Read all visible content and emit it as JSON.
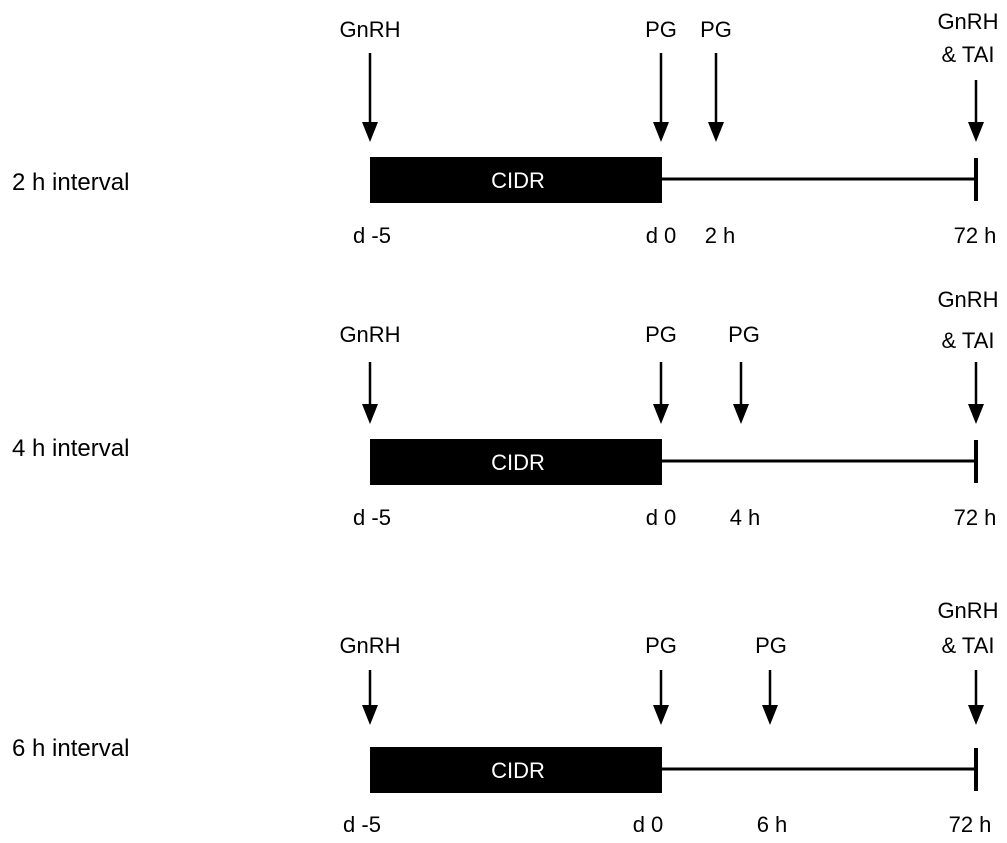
{
  "colors": {
    "ink": "#000000",
    "paper": "#ffffff"
  },
  "protocols": [
    {
      "label": "2 h interval",
      "events": {
        "gnrh": "GnRH",
        "pg1": "PG",
        "pg2": "PG",
        "final_line1": "GnRH",
        "final_line2": "& TAI"
      },
      "device": "CIDR",
      "ticks": {
        "start": "d -5",
        "pg1": "d 0",
        "pg2": "2 h",
        "end": "72 h"
      },
      "pg2_hours": 2
    },
    {
      "label": "4 h interval",
      "events": {
        "gnrh": "GnRH",
        "pg1": "PG",
        "pg2": "PG",
        "final_line1": "GnRH",
        "final_line2": "& TAI"
      },
      "device": "CIDR",
      "ticks": {
        "start": "d -5",
        "pg1": "d 0",
        "pg2": "4 h",
        "end": "72 h"
      },
      "pg2_hours": 4
    },
    {
      "label": "6 h interval",
      "events": {
        "gnrh": "GnRH",
        "pg1": "PG",
        "pg2": "PG",
        "final_line1": "GnRH",
        "final_line2": "& TAI"
      },
      "device": "CIDR",
      "ticks": {
        "start": "d -5",
        "pg1": "d 0",
        "pg2": "6 h",
        "end": "72 h"
      },
      "pg2_hours": 6
    }
  ]
}
